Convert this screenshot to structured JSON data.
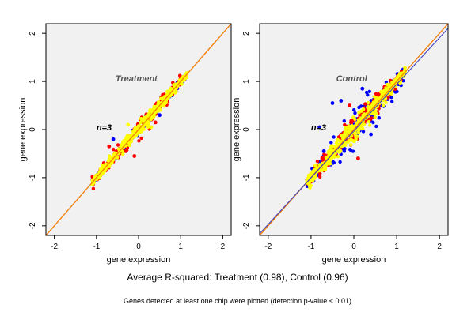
{
  "caption": "Average R-squared: Treatment (0.98), Control (0.96)",
  "footnote": "Genes detected at least one chip were plotted (detection p-value < 0.01)",
  "colors": {
    "background": "#f1f1f1",
    "blue_points": "#0000ff",
    "red_points": "#ff0000",
    "yellow_points": "#ffff00",
    "identity_line": "#8b0000",
    "fit_line_treatment": "#ff8c00",
    "fit_line_control_a": "#ff8c00",
    "fit_line_control_b": "#4040c0"
  },
  "chart_data": [
    {
      "type": "scatter",
      "title": "Treatment",
      "annotation": "n=3",
      "xlabel": "gene expression",
      "ylabel": "gene expression",
      "xlim": [
        -2.2,
        2.2
      ],
      "ylim": [
        -2.2,
        2.2
      ],
      "xticks": [
        -2,
        -1,
        0,
        1,
        2
      ],
      "yticks": [
        -2,
        -1,
        0,
        1,
        2
      ],
      "grid": false,
      "point_cloud": {
        "x_range": [
          -1.1,
          1.15
        ],
        "spread": {
          "blue": 0.06,
          "red": 0.1,
          "yellow": 0.07
        },
        "outliers": [
          {
            "x": -0.7,
            "y": -0.35,
            "color": "red"
          },
          {
            "x": -0.3,
            "y": -0.45,
            "color": "red"
          },
          {
            "x": -0.1,
            "y": -0.55,
            "color": "red"
          },
          {
            "x": 0.4,
            "y": 0.15,
            "color": "red"
          },
          {
            "x": 0.5,
            "y": 0.3,
            "color": "blue"
          },
          {
            "x": -0.6,
            "y": -0.2,
            "color": "blue"
          },
          {
            "x": -0.25,
            "y": 0.1,
            "color": "yellow"
          },
          {
            "x": 0.3,
            "y": 0.05,
            "color": "yellow"
          }
        ]
      },
      "lines": [
        {
          "kind": "identity",
          "slope": 1,
          "intercept": 0,
          "color": "identity_line"
        },
        {
          "kind": "fit",
          "slope": 1.0,
          "intercept": 0.0,
          "color": "fit_line_treatment"
        }
      ]
    },
    {
      "type": "scatter",
      "title": "Control",
      "annotation": "n=3",
      "xlabel": "gene expression",
      "ylabel": "gene expression",
      "xlim": [
        -2.2,
        2.2
      ],
      "ylim": [
        -2.2,
        2.2
      ],
      "xticks": [
        -2,
        -1,
        0,
        1,
        2
      ],
      "yticks": [
        -2,
        -1,
        0,
        1,
        2
      ],
      "grid": false,
      "point_cloud": {
        "x_range": [
          -1.1,
          1.2
        ],
        "spread": {
          "blue": 0.22,
          "red": 0.16,
          "yellow": 0.12
        },
        "outliers": [
          {
            "x": -0.8,
            "y": 0.05,
            "color": "blue"
          },
          {
            "x": -0.7,
            "y": -0.45,
            "color": "blue"
          },
          {
            "x": -0.5,
            "y": 0.55,
            "color": "blue"
          },
          {
            "x": 0.2,
            "y": 0.85,
            "color": "blue"
          },
          {
            "x": 0.4,
            "y": -0.1,
            "color": "blue"
          },
          {
            "x": -0.3,
            "y": 0.6,
            "color": "blue"
          },
          {
            "x": 0.1,
            "y": -0.6,
            "color": "red"
          },
          {
            "x": -0.1,
            "y": 0.5,
            "color": "red"
          }
        ]
      },
      "lines": [
        {
          "kind": "identity",
          "slope": 1,
          "intercept": 0,
          "color": "identity_line"
        },
        {
          "kind": "fit",
          "slope": 1.0,
          "intercept": 0.0,
          "color": "fit_line_control_a"
        },
        {
          "kind": "fit",
          "slope": 0.97,
          "intercept": -0.03,
          "color": "fit_line_control_b"
        }
      ]
    }
  ]
}
